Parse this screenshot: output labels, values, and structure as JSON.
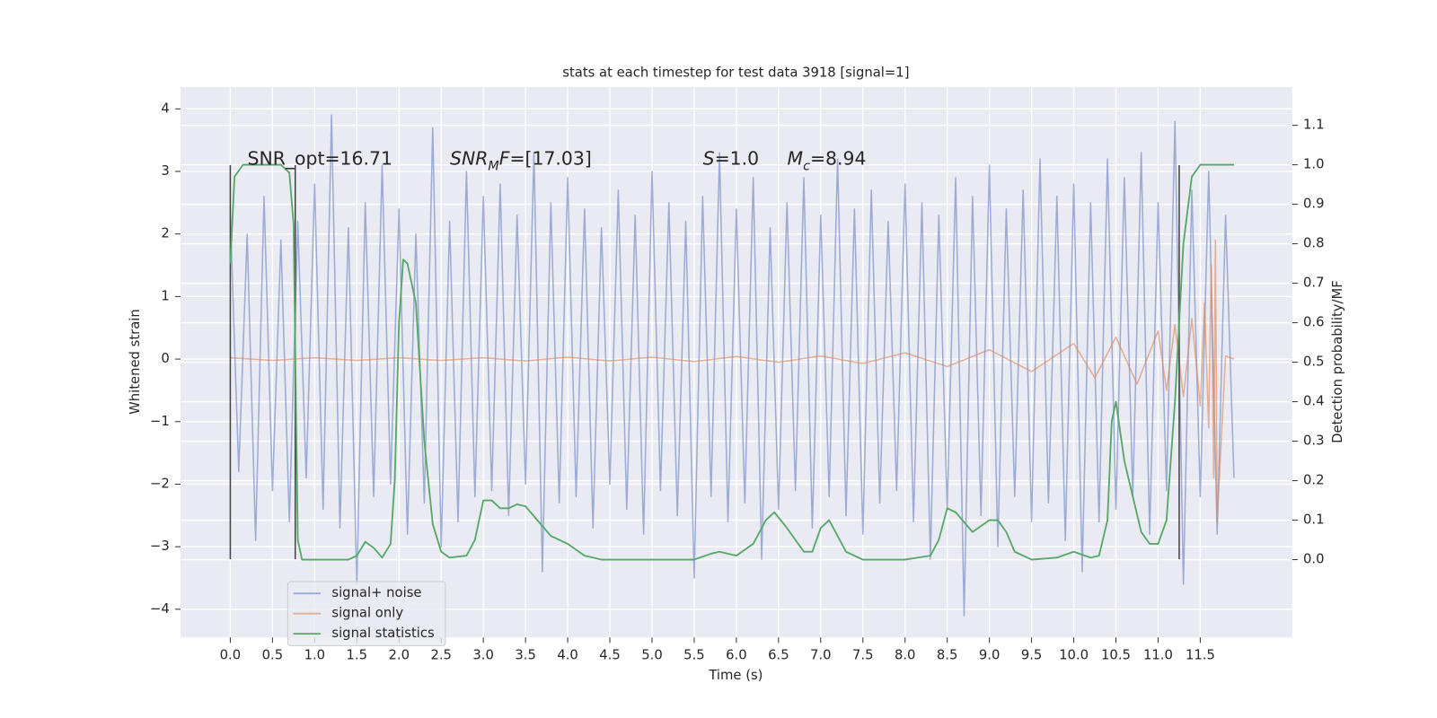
{
  "chart_data": {
    "type": "line",
    "title": "stats at each timestep for test data 3918 [signal=1]",
    "xlabel": "Time (s)",
    "ylabel": "Whitened strain",
    "y2label": "Detection probability/MF",
    "xlim": [
      -0.59,
      12.59
    ],
    "ylim": [
      -4.45,
      4.35
    ],
    "y2lim": [
      -0.197,
      1.197
    ],
    "xticks": [
      {
        "value": 0,
        "label": "0.0"
      },
      {
        "value": 0.5,
        "label": "0.5"
      },
      {
        "value": 1,
        "label": "1.0"
      },
      {
        "value": 1.5,
        "label": "1.5"
      },
      {
        "value": 2,
        "label": "2.0"
      },
      {
        "value": 2.5,
        "label": "2.5"
      },
      {
        "value": 3,
        "label": "3.0"
      },
      {
        "value": 3.5,
        "label": "3.5"
      },
      {
        "value": 4,
        "label": "4.0"
      },
      {
        "value": 4.5,
        "label": "4.5"
      },
      {
        "value": 5,
        "label": "5.0"
      },
      {
        "value": 5.5,
        "label": "5.5"
      },
      {
        "value": 6,
        "label": "6.0"
      },
      {
        "value": 6.5,
        "label": "6.5"
      },
      {
        "value": 7,
        "label": "7.0"
      },
      {
        "value": 7.5,
        "label": "7.5"
      },
      {
        "value": 8,
        "label": "8.0"
      },
      {
        "value": 8.5,
        "label": "8.5"
      },
      {
        "value": 9,
        "label": "9.0"
      },
      {
        "value": 9.5,
        "label": "9.5"
      },
      {
        "value": 10,
        "label": "10.0"
      },
      {
        "value": 10.5,
        "label": "10.5"
      },
      {
        "value": 11,
        "label": "11.0"
      },
      {
        "value": 11.5,
        "label": "11.5"
      }
    ],
    "yticks": [
      {
        "value": -4,
        "label": "−4"
      },
      {
        "value": -3,
        "label": "−3"
      },
      {
        "value": -2,
        "label": "−2"
      },
      {
        "value": -1,
        "label": "−1"
      },
      0,
      1,
      2,
      3,
      4
    ],
    "y2ticks": [
      {
        "value": 0,
        "label": "0.0"
      },
      {
        "value": 0.1,
        "label": "0.1"
      },
      {
        "value": 0.2,
        "label": "0.2"
      },
      {
        "value": 0.3,
        "label": "0.3"
      },
      {
        "value": 0.4,
        "label": "0.4"
      },
      {
        "value": 0.5,
        "label": "0.5"
      },
      {
        "value": 0.6,
        "label": "0.6"
      },
      {
        "value": 0.7,
        "label": "0.7"
      },
      {
        "value": 0.8,
        "label": "0.8"
      },
      {
        "value": 0.9,
        "label": "0.9"
      },
      {
        "value": 1,
        "label": "1.0"
      },
      {
        "value": 1.1,
        "label": "1.1"
      }
    ],
    "grid": true,
    "legend": "lower left",
    "series": [
      {
        "name": "signal+ noise",
        "color": "#7790c8",
        "opacity": 0.7,
        "x": [
          0,
          0.1,
          0.2,
          0.3,
          0.4,
          0.5,
          0.6,
          0.7,
          0.8,
          0.9,
          1,
          1.1,
          1.2,
          1.3,
          1.4,
          1.5,
          1.6,
          1.7,
          1.8,
          1.9,
          2,
          2.1,
          2.2,
          2.3,
          2.4,
          2.5,
          2.6,
          2.7,
          2.8,
          2.9,
          3,
          3.1,
          3.2,
          3.3,
          3.4,
          3.5,
          3.6,
          3.7,
          3.8,
          3.9,
          4,
          4.1,
          4.2,
          4.3,
          4.4,
          4.5,
          4.6,
          4.7,
          4.8,
          4.9,
          5,
          5.1,
          5.2,
          5.3,
          5.4,
          5.5,
          5.6,
          5.7,
          5.8,
          5.9,
          6,
          6.1,
          6.2,
          6.3,
          6.4,
          6.5,
          6.6,
          6.7,
          6.8,
          6.9,
          7,
          7.1,
          7.2,
          7.3,
          7.4,
          7.5,
          7.6,
          7.7,
          7.8,
          7.9,
          8,
          8.1,
          8.2,
          8.3,
          8.4,
          8.5,
          8.6,
          8.7,
          8.8,
          8.9,
          9,
          9.1,
          9.2,
          9.3,
          9.4,
          9.5,
          9.6,
          9.7,
          9.8,
          9.9,
          10,
          10.1,
          10.2,
          10.3,
          10.4,
          10.5,
          10.6,
          10.7,
          10.8,
          10.9,
          11,
          11.1,
          11.2,
          11.3,
          11.4,
          11.5,
          11.6,
          11.7,
          11.8,
          11.9
        ],
        "values": [
          2.3,
          -1.8,
          2.0,
          -2.9,
          2.6,
          -2.1,
          1.9,
          -2.6,
          2.2,
          -1.9,
          2.8,
          -2.4,
          3.9,
          -2.7,
          2.1,
          -3.6,
          2.5,
          -2.2,
          3.1,
          -2.0,
          2.4,
          -2.8,
          2.0,
          -2.3,
          3.7,
          -3.0,
          2.2,
          -2.6,
          3.0,
          -2.2,
          2.6,
          -2.1,
          2.8,
          -2.5,
          2.3,
          -2.0,
          3.3,
          -3.4,
          2.5,
          -2.3,
          2.9,
          -2.2,
          2.4,
          -2.7,
          2.1,
          -2.0,
          2.7,
          -2.4,
          2.3,
          -2.8,
          3.0,
          -2.1,
          2.5,
          -2.5,
          2.2,
          -3.5,
          2.6,
          -2.2,
          3.3,
          -2.6,
          2.4,
          -2.3,
          2.9,
          -3.2,
          2.1,
          -2.4,
          2.5,
          -2.1,
          2.9,
          -2.7,
          2.3,
          -2.2,
          3.2,
          -2.5,
          2.4,
          -2.8,
          2.7,
          -2.3,
          2.2,
          -2.1,
          2.8,
          -2.6,
          2.5,
          -3.2,
          2.3,
          -2.4,
          2.9,
          -4.1,
          2.6,
          -2.5,
          3.1,
          -3.0,
          2.4,
          -2.2,
          2.7,
          -2.6,
          3.2,
          -2.3,
          2.6,
          -2.9,
          2.8,
          -3.4,
          2.5,
          -2.6,
          3.2,
          -2.4,
          2.9,
          -2.2,
          3.3,
          -2.8,
          2.5,
          -2.1,
          3.8,
          -3.6,
          2.7,
          -2.2,
          3.0,
          -2.8,
          2.3,
          -1.9
        ]
      },
      {
        "name": "signal only",
        "color": "#dd8452",
        "opacity": 0.6,
        "x": [
          0,
          0.5,
          1,
          1.5,
          2,
          2.5,
          3,
          3.5,
          4,
          4.5,
          5,
          5.5,
          6,
          6.5,
          7,
          7.5,
          8,
          8.5,
          9,
          9.5,
          10,
          10.25,
          10.5,
          10.75,
          11,
          11.1,
          11.2,
          11.3,
          11.4,
          11.5,
          11.55,
          11.6,
          11.63,
          11.66,
          11.68,
          11.7,
          11.8,
          11.9
        ],
        "values": [
          0.02,
          -0.02,
          0.02,
          -0.02,
          0.02,
          -0.02,
          0.02,
          -0.03,
          0.03,
          -0.03,
          0.03,
          -0.04,
          0.04,
          -0.05,
          0.05,
          -0.07,
          0.1,
          -0.12,
          0.15,
          -0.2,
          0.25,
          -0.3,
          0.35,
          -0.4,
          0.45,
          -0.5,
          0.55,
          -0.6,
          0.65,
          -0.75,
          0.9,
          -1.1,
          1.5,
          -1.9,
          1.9,
          -2.6,
          0.05,
          0
        ]
      },
      {
        "name": "signal statistics",
        "color": "#55a868",
        "opacity": 1,
        "axis": "y2",
        "x": [
          0,
          0.05,
          0.15,
          0.6,
          0.7,
          0.75,
          0.8,
          0.85,
          1.0,
          1.4,
          1.5,
          1.6,
          1.7,
          1.8,
          1.9,
          1.95,
          2.0,
          2.05,
          2.1,
          2.2,
          2.3,
          2.4,
          2.5,
          2.6,
          2.8,
          2.9,
          3.0,
          3.1,
          3.2,
          3.3,
          3.4,
          3.5,
          3.6,
          3.8,
          4.0,
          4.2,
          4.4,
          5.0,
          5.5,
          5.7,
          5.8,
          6.0,
          6.2,
          6.35,
          6.45,
          6.6,
          6.8,
          6.9,
          7.0,
          7.1,
          7.3,
          7.5,
          8.0,
          8.3,
          8.4,
          8.5,
          8.6,
          8.8,
          9.0,
          9.1,
          9.2,
          9.3,
          9.5,
          9.8,
          10.0,
          10.2,
          10.3,
          10.4,
          10.45,
          10.5,
          10.6,
          10.8,
          10.9,
          11.0,
          11.1,
          11.2,
          11.3,
          11.4,
          11.5,
          11.9
        ],
        "values": [
          0.75,
          0.97,
          1.0,
          1.0,
          0.98,
          0.85,
          0.05,
          0.0,
          0.0,
          0.0,
          0.01,
          0.045,
          0.03,
          0.005,
          0.04,
          0.2,
          0.6,
          0.76,
          0.75,
          0.65,
          0.3,
          0.09,
          0.02,
          0.005,
          0.01,
          0.05,
          0.15,
          0.15,
          0.13,
          0.13,
          0.14,
          0.135,
          0.11,
          0.06,
          0.04,
          0.01,
          0.0,
          0.0,
          0.0,
          0.015,
          0.02,
          0.01,
          0.04,
          0.1,
          0.12,
          0.08,
          0.02,
          0.02,
          0.08,
          0.1,
          0.02,
          0.0,
          0.0,
          0.01,
          0.05,
          0.13,
          0.12,
          0.07,
          0.1,
          0.1,
          0.07,
          0.02,
          0.0,
          0.005,
          0.02,
          0.005,
          0.01,
          0.1,
          0.35,
          0.4,
          0.25,
          0.07,
          0.04,
          0.04,
          0.1,
          0.4,
          0.8,
          0.97,
          1.0,
          1.0
        ]
      }
    ],
    "vlines": {
      "x": [
        0,
        0.77,
        11.25
      ],
      "ymin": -3.2,
      "ymax": 3.1,
      "color": "#444444"
    },
    "annotations": [
      [
        {
          "text": "SNR_opt=16.71",
          "style": "normal"
        }
      ],
      [
        {
          "text": "SNR",
          "style": "italic"
        },
        {
          "text": "M",
          "style": "sub"
        },
        {
          "text": "F",
          "style": "italic"
        },
        {
          "text": "=[17.03]",
          "style": "normal"
        }
      ],
      [
        {
          "text": "S",
          "style": "italic"
        },
        {
          "text": "=1.0",
          "style": "normal"
        }
      ],
      [
        {
          "text": "M",
          "style": "italic"
        },
        {
          "text": "c",
          "style": "sub"
        },
        {
          "text": "=8.94",
          "style": "normal"
        }
      ]
    ]
  }
}
